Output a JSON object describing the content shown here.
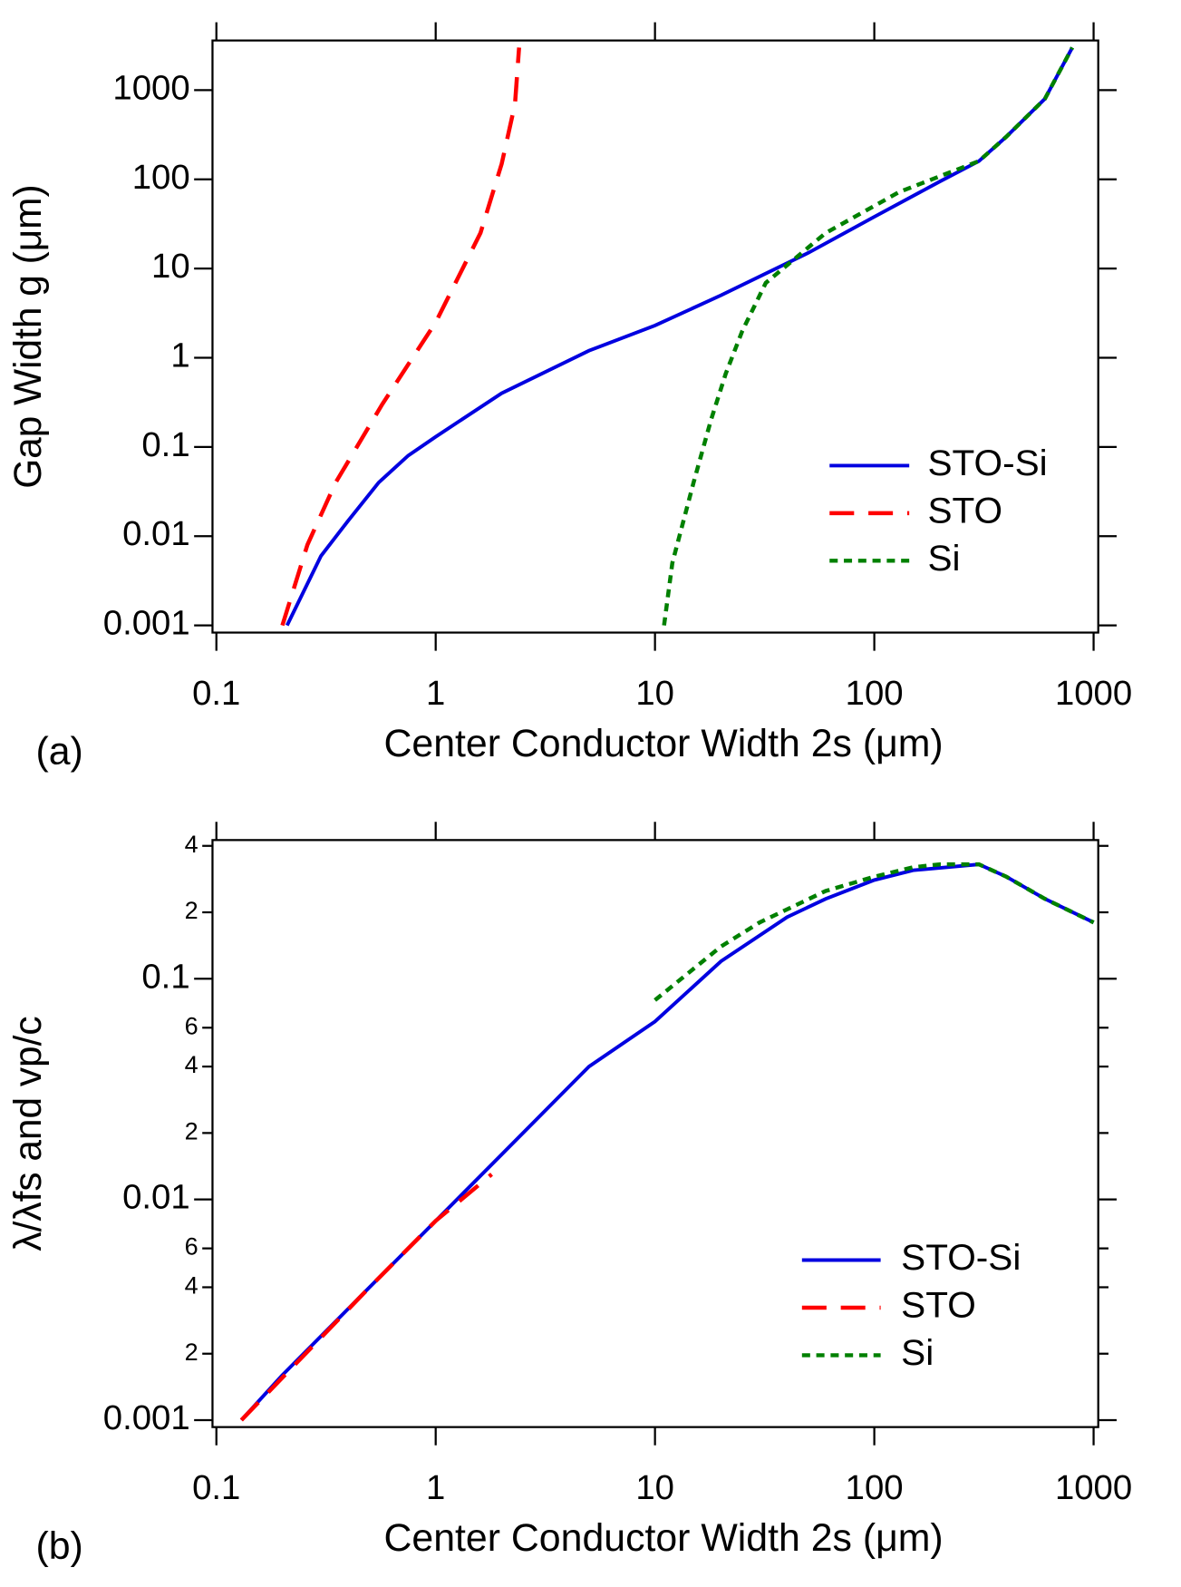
{
  "chart_data": [
    {
      "type": "line",
      "panel": "(a)",
      "xlabel": "Center Conductor Width 2s (μm)",
      "ylabel": "Gap Width g (μm)",
      "xscale": "log",
      "yscale": "log",
      "xlim": [
        0.096,
        1050
      ],
      "ylim": [
        0.00083,
        3600
      ],
      "xticks": [
        0.1,
        1,
        10,
        100,
        1000
      ],
      "yticks": [
        0.001,
        0.01,
        0.1,
        1,
        10,
        100,
        1000
      ],
      "legend": "lower right",
      "series": [
        {
          "name": "STO-Si",
          "color": "#0000e0",
          "style": "solid",
          "x": [
            0.21,
            0.3,
            0.4,
            0.55,
            0.75,
            1,
            2,
            5,
            10,
            20,
            50,
            100,
            200,
            300,
            400,
            600,
            800
          ],
          "values": [
            0.001,
            0.006,
            0.015,
            0.04,
            0.08,
            0.13,
            0.4,
            1.2,
            2.3,
            5,
            15,
            38,
            95,
            160,
            300,
            800,
            3000
          ]
        },
        {
          "name": "STO",
          "color": "#ff0000",
          "style": "dashed",
          "x": [
            0.2,
            0.26,
            0.35,
            0.57,
            1,
            1.6,
            2,
            2.3,
            2.4
          ],
          "values": [
            0.001,
            0.008,
            0.04,
            0.3,
            2.5,
            25,
            150,
            700,
            3000
          ]
        },
        {
          "name": "Si",
          "color": "#008000",
          "style": "dotted",
          "x": [
            11,
            12,
            15,
            18,
            21,
            25,
            32,
            60,
            130,
            300,
            400,
            600,
            800
          ],
          "values": [
            0.001,
            0.005,
            0.04,
            0.2,
            0.66,
            2,
            6.9,
            25,
            72,
            160,
            300,
            800,
            3000
          ]
        }
      ]
    },
    {
      "type": "line",
      "panel": "(b)",
      "xlabel": "Center Conductor Width 2s (μm)",
      "ylabel": "λ/λfs and vp/c",
      "xscale": "log",
      "yscale": "log",
      "xlim": [
        0.096,
        1050
      ],
      "ylim": [
        0.00093,
        0.425
      ],
      "xticks": [
        0.1,
        1,
        10,
        100,
        1000
      ],
      "yticks": [
        0.001,
        {
          "value": 0.002,
          "label": "2"
        },
        {
          "value": 0.004,
          "label": "4"
        },
        {
          "value": 0.006,
          "label": "6"
        },
        0.01,
        {
          "value": 0.02,
          "label": "2"
        },
        {
          "value": 0.04,
          "label": "4"
        },
        {
          "value": 0.06,
          "label": "6"
        },
        0.1,
        {
          "value": 0.2,
          "label": "2"
        },
        {
          "value": 0.4,
          "label": "4"
        }
      ],
      "legend": "lower right",
      "series": [
        {
          "name": "STO-Si",
          "color": "#0000e0",
          "style": "solid",
          "x": [
            0.13,
            0.2,
            0.5,
            1,
            2,
            5,
            10,
            20,
            40,
            60,
            100,
            150,
            300,
            400,
            600,
            1000
          ],
          "values": [
            0.001,
            0.0016,
            0.004,
            0.008,
            0.016,
            0.04,
            0.064,
            0.12,
            0.19,
            0.23,
            0.28,
            0.31,
            0.33,
            0.29,
            0.23,
            0.18
          ]
        },
        {
          "name": "STO",
          "color": "#ff0000",
          "style": "dashed",
          "x": [
            0.13,
            0.5,
            1,
            1.8
          ],
          "values": [
            0.001,
            0.004,
            0.008,
            0.013
          ]
        },
        {
          "name": "Si",
          "color": "#008000",
          "style": "dotted",
          "x": [
            10,
            20,
            30,
            60,
            100,
            150,
            200,
            300,
            400,
            600,
            1000
          ],
          "values": [
            0.08,
            0.14,
            0.18,
            0.25,
            0.29,
            0.32,
            0.33,
            0.33,
            0.29,
            0.23,
            0.18
          ]
        }
      ]
    }
  ]
}
